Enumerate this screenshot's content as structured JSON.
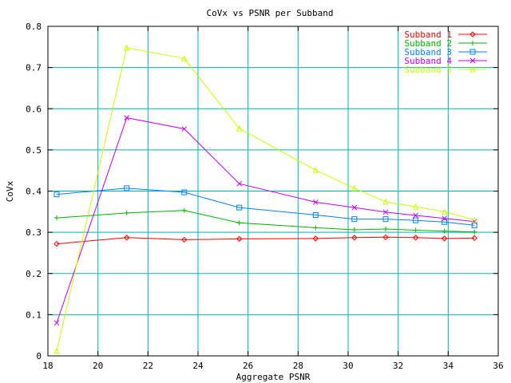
{
  "chart_data": {
    "type": "line",
    "title": "CoVx vs PSNR per Subband",
    "xlabel": "Aggregate PSNR",
    "ylabel": "CoVx",
    "xlim": [
      18,
      36
    ],
    "ylim": [
      0,
      0.8
    ],
    "xticks": [
      18,
      20,
      22,
      24,
      26,
      28,
      30,
      32,
      34,
      36
    ],
    "yticks": [
      0,
      0.1,
      0.2,
      0.3,
      0.4,
      0.5,
      0.6,
      0.7,
      0.8
    ],
    "grid": true,
    "legend_position": "top-right",
    "x": [
      18.35,
      21.15,
      23.45,
      25.65,
      28.7,
      30.25,
      31.5,
      32.7,
      33.85,
      35.05
    ],
    "series": [
      {
        "name": "Subband  1",
        "color": "#ff0000",
        "marker": "diamond",
        "values": [
          0.272,
          0.287,
          0.282,
          0.284,
          0.285,
          0.287,
          0.288,
          0.287,
          0.285,
          0.286
        ]
      },
      {
        "name": "Subband  2",
        "color": "#00b300",
        "marker": "plus",
        "values": [
          0.335,
          0.347,
          0.353,
          0.323,
          0.311,
          0.306,
          0.308,
          0.305,
          0.303,
          0.301
        ]
      },
      {
        "name": "Subband  3",
        "color": "#0080ff",
        "marker": "square",
        "values": [
          0.392,
          0.407,
          0.397,
          0.36,
          0.342,
          0.332,
          0.332,
          0.329,
          0.325,
          0.317
        ]
      },
      {
        "name": "Subband  4",
        "color": "#c000ff",
        "marker": "cross",
        "values": [
          0.08,
          0.578,
          0.551,
          0.418,
          0.373,
          0.36,
          0.349,
          0.341,
          0.334,
          0.326
        ]
      },
      {
        "name": "Subband  5",
        "color": "#c8ff00",
        "marker": "triangle",
        "values": [
          0.012,
          0.748,
          0.722,
          0.552,
          0.451,
          0.407,
          0.374,
          0.362,
          0.35,
          0.33
        ]
      }
    ]
  }
}
